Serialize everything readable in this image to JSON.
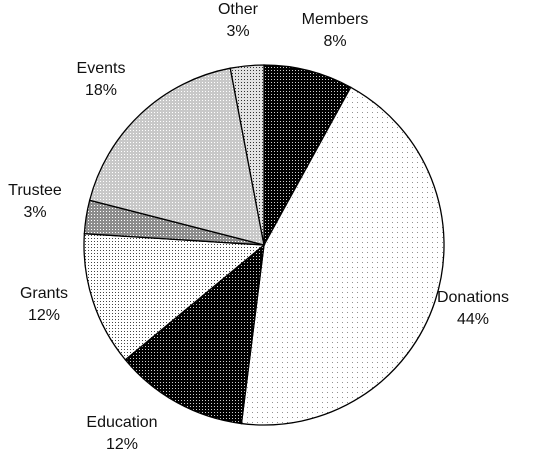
{
  "chart_data": {
    "type": "pie",
    "start": "top",
    "direction": "clockwise",
    "slices": [
      {
        "label": "Members",
        "value": 8,
        "value_text": "8%",
        "pattern": "dense-black"
      },
      {
        "label": "Donations",
        "value": 44,
        "value_text": "44%",
        "pattern": "sparse-dots"
      },
      {
        "label": "Education",
        "value": 12,
        "value_text": "12%",
        "pattern": "dense-black"
      },
      {
        "label": "Grants",
        "value": 12,
        "value_text": "12%",
        "pattern": "fine-dots"
      },
      {
        "label": "Trustee",
        "value": 3,
        "value_text": "3%",
        "pattern": "medium-gray"
      },
      {
        "label": "Events",
        "value": 18,
        "value_text": "18%",
        "pattern": "light-gray"
      },
      {
        "label": "Other",
        "value": 3,
        "value_text": "3%",
        "pattern": "light-dots"
      }
    ]
  }
}
